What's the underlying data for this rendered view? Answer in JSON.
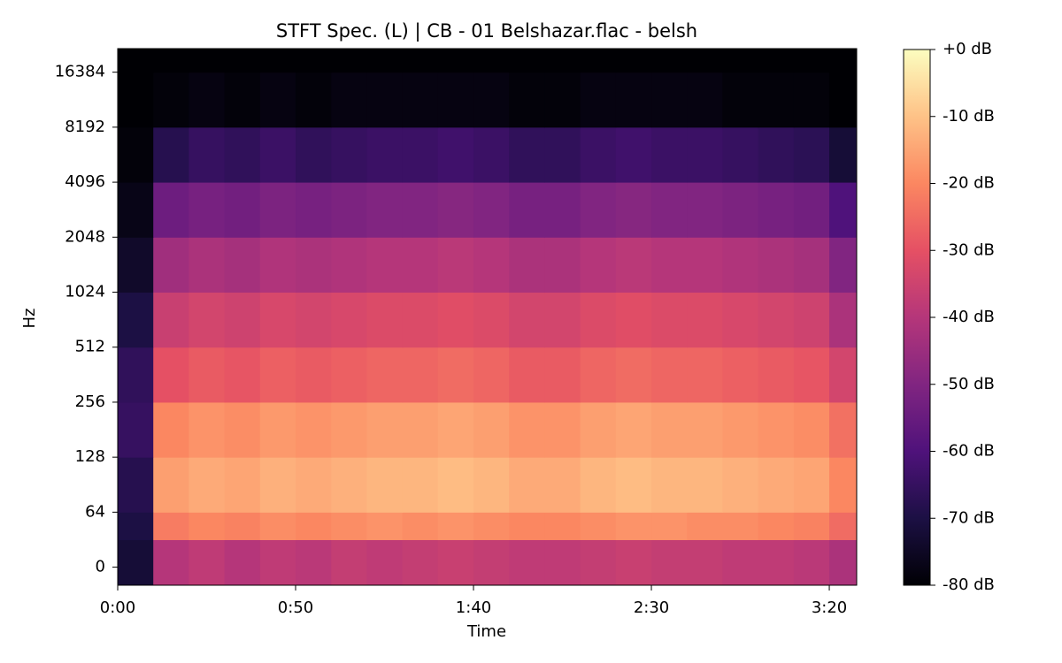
{
  "chart_data": {
    "type": "spectrogram",
    "title": "STFT Spec. (L) | CB - 01 Belshazar.flac - belsh",
    "x_label": "Time",
    "y_label": "Hz",
    "xlim": [
      0,
      207.7
    ],
    "xticks": [
      {
        "value": 0,
        "label": "0:00"
      },
      {
        "value": 50,
        "label": "0:50"
      },
      {
        "value": 100,
        "label": "1:40"
      },
      {
        "value": 150,
        "label": "2:30"
      },
      {
        "value": 200,
        "label": "3:20"
      }
    ],
    "yscale": "symlog",
    "ybase": 2,
    "linthresh": 64,
    "ylim": [
      -21,
      22050
    ],
    "yticks": [
      0,
      64,
      128,
      256,
      512,
      1024,
      2048,
      4096,
      8192,
      16384
    ],
    "time_bins": [
      0,
      10,
      20,
      30,
      40,
      50,
      60,
      70,
      80,
      90,
      100,
      110,
      120,
      130,
      140,
      150,
      160,
      170,
      180,
      190,
      200,
      207.7
    ],
    "freq_bins": [
      -21,
      32,
      64,
      128,
      256,
      512,
      1024,
      2048,
      4096,
      8192,
      16384,
      22050
    ],
    "z": [
      [
        -72,
        -40,
        -38,
        -40,
        -38,
        -39,
        -37,
        -38,
        -37,
        -36,
        -37,
        -38,
        -38,
        -37,
        -36,
        -37,
        -37,
        -38,
        -38,
        -39,
        -42
      ],
      [
        -70,
        -22,
        -20,
        -21,
        -19,
        -20,
        -19,
        -18,
        -19,
        -18,
        -19,
        -20,
        -20,
        -19,
        -18,
        -18,
        -19,
        -19,
        -20,
        -21,
        -25
      ],
      [
        -68,
        -16,
        -14,
        -15,
        -13,
        -14,
        -13,
        -12,
        -12,
        -11,
        -12,
        -14,
        -14,
        -12,
        -11,
        -12,
        -12,
        -13,
        -14,
        -15,
        -20
      ],
      [
        -65,
        -20,
        -18,
        -19,
        -17,
        -18,
        -17,
        -16,
        -16,
        -15,
        -16,
        -18,
        -18,
        -16,
        -15,
        -16,
        -16,
        -17,
        -18,
        -19,
        -24
      ],
      [
        -66,
        -30,
        -28,
        -29,
        -27,
        -28,
        -27,
        -26,
        -26,
        -25,
        -26,
        -28,
        -28,
        -26,
        -25,
        -26,
        -26,
        -27,
        -28,
        -29,
        -34
      ],
      [
        -70,
        -36,
        -34,
        -35,
        -33,
        -34,
        -33,
        -32,
        -32,
        -31,
        -32,
        -34,
        -34,
        -32,
        -31,
        -32,
        -32,
        -33,
        -34,
        -35,
        -42
      ],
      [
        -74,
        -44,
        -42,
        -43,
        -41,
        -42,
        -41,
        -40,
        -40,
        -39,
        -40,
        -42,
        -42,
        -40,
        -39,
        -40,
        -40,
        -41,
        -42,
        -43,
        -50
      ],
      [
        -77,
        -54,
        -52,
        -53,
        -51,
        -52,
        -51,
        -50,
        -50,
        -49,
        -50,
        -52,
        -52,
        -50,
        -49,
        -50,
        -50,
        -51,
        -52,
        -53,
        -60
      ],
      [
        -79,
        -68,
        -65,
        -66,
        -64,
        -66,
        -65,
        -64,
        -64,
        -63,
        -64,
        -66,
        -66,
        -64,
        -63,
        -64,
        -64,
        -65,
        -66,
        -67,
        -72
      ],
      [
        -80,
        -79,
        -78,
        -79,
        -78,
        -79,
        -78,
        -78,
        -78,
        -78,
        -78,
        -79,
        -79,
        -78,
        -78,
        -78,
        -78,
        -79,
        -79,
        -79,
        -80
      ],
      [
        -80,
        -80,
        -80,
        -80,
        -80,
        -80,
        -80,
        -80,
        -80,
        -80,
        -80,
        -80,
        -80,
        -80,
        -80,
        -80,
        -80,
        -80,
        -80,
        -80,
        -80
      ]
    ],
    "colormap": [
      "#000004",
      "#1c1044",
      "#4f127b",
      "#812581",
      "#b5367a",
      "#e55064",
      "#fb8761",
      "#fec287",
      "#fcfdbf"
    ],
    "clim": [
      -80,
      0
    ],
    "cticks": [
      {
        "value": 0,
        "label": "+0 dB"
      },
      {
        "value": -10,
        "label": "-10 dB"
      },
      {
        "value": -20,
        "label": "-20 dB"
      },
      {
        "value": -30,
        "label": "-30 dB"
      },
      {
        "value": -40,
        "label": "-40 dB"
      },
      {
        "value": -50,
        "label": "-50 dB"
      },
      {
        "value": -60,
        "label": "-60 dB"
      },
      {
        "value": -70,
        "label": "-70 dB"
      },
      {
        "value": -80,
        "label": "-80 dB"
      }
    ]
  }
}
